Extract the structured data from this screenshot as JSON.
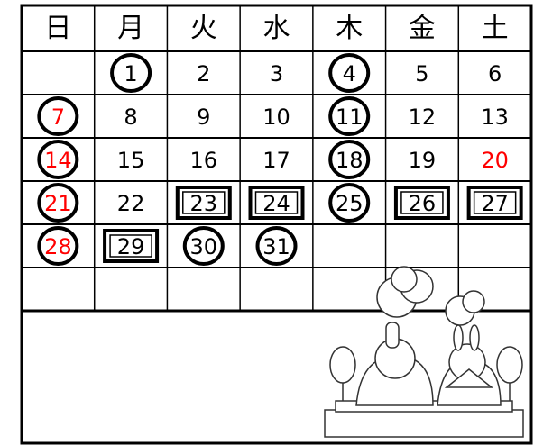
{
  "calendar": {
    "weekdays": [
      "日",
      "月",
      "火",
      "水",
      "木",
      "金",
      "土"
    ],
    "weeks": [
      [
        null,
        {
          "text": "1",
          "marker": "circle"
        },
        {
          "text": "2"
        },
        {
          "text": "3"
        },
        {
          "text": "4",
          "marker": "circle"
        },
        {
          "text": "5"
        },
        {
          "text": "6"
        }
      ],
      [
        {
          "text": "7",
          "color": "red",
          "marker": "circle"
        },
        {
          "text": "8"
        },
        {
          "text": "9"
        },
        {
          "text": "10"
        },
        {
          "text": "11",
          "marker": "circle"
        },
        {
          "text": "12"
        },
        {
          "text": "13"
        }
      ],
      [
        {
          "text": "14",
          "color": "red",
          "marker": "circle"
        },
        {
          "text": "15"
        },
        {
          "text": "16"
        },
        {
          "text": "17"
        },
        {
          "text": "18",
          "marker": "circle"
        },
        {
          "text": "19"
        },
        {
          "text": "20",
          "color": "red"
        }
      ],
      [
        {
          "text": "21",
          "color": "red",
          "marker": "circle"
        },
        {
          "text": "22"
        },
        {
          "text": "23",
          "marker": "box"
        },
        {
          "text": "24",
          "marker": "box"
        },
        {
          "text": "25",
          "marker": "circle"
        },
        {
          "text": "26",
          "marker": "box"
        },
        {
          "text": "27",
          "marker": "box"
        }
      ],
      [
        {
          "text": "28",
          "color": "red",
          "marker": "circle"
        },
        {
          "text": "29",
          "marker": "box"
        },
        {
          "text": "30",
          "marker": "circle"
        },
        {
          "text": "31",
          "marker": "circle"
        },
        null,
        null,
        null
      ],
      [
        null,
        null,
        null,
        null,
        null,
        null,
        null
      ]
    ]
  }
}
